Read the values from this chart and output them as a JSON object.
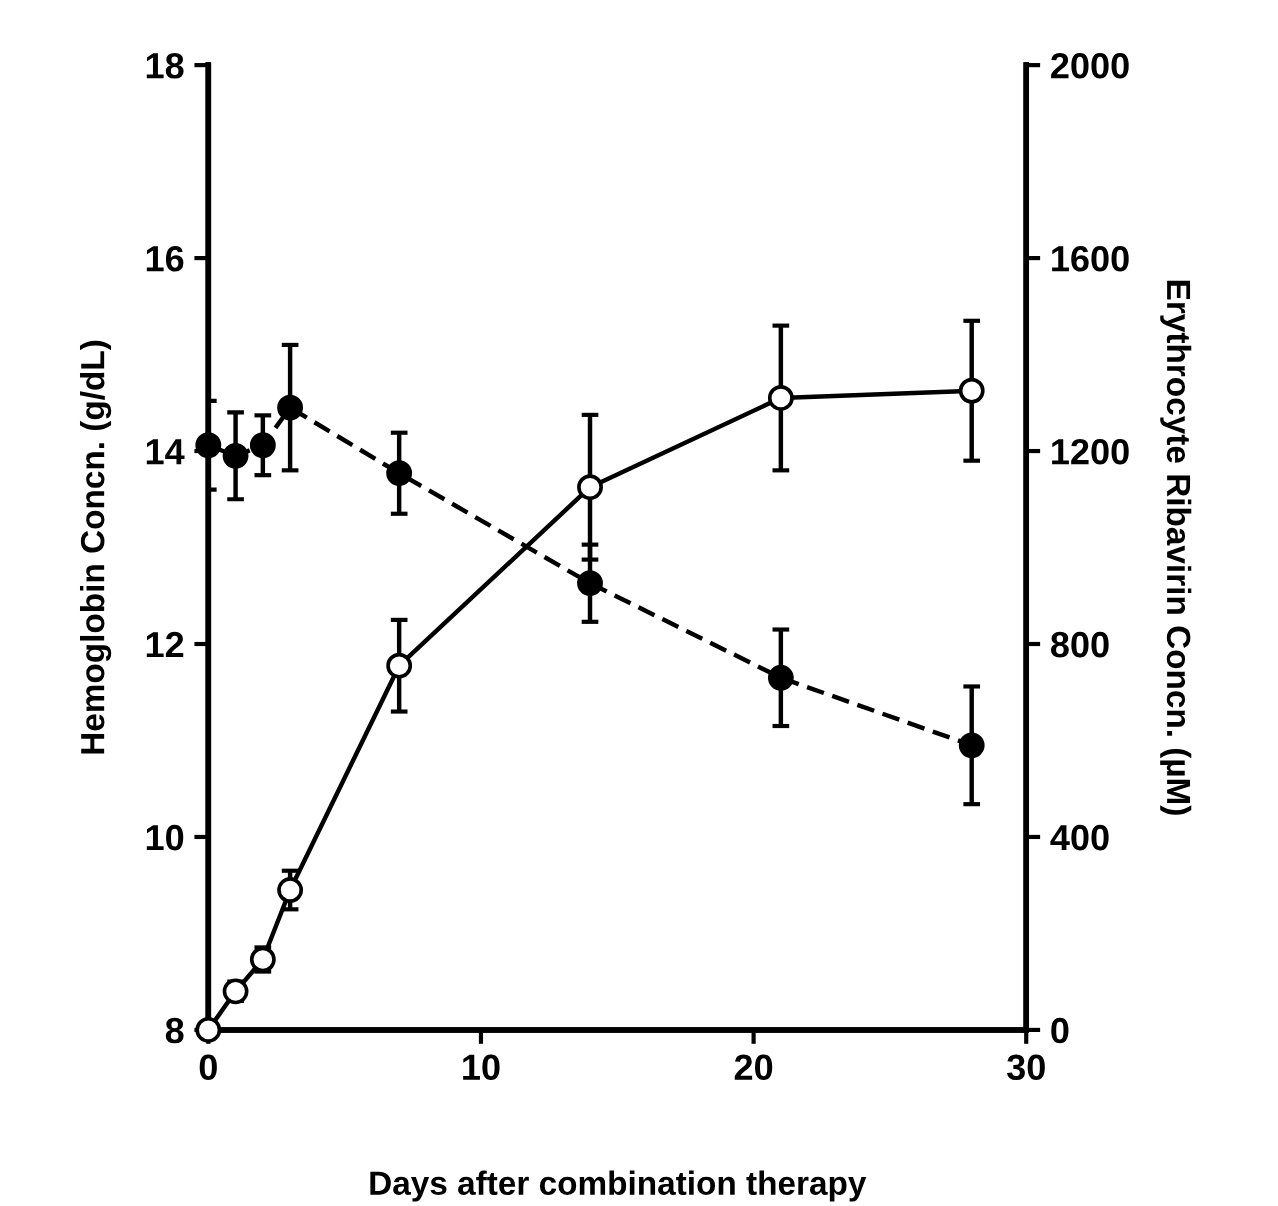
{
  "chart_data": {
    "type": "line",
    "xlabel": "Days after combination therapy",
    "ylabel": "Hemoglobin Concn. (g/dL)",
    "y2label": "Erythrocyte Ribavirin Concn. (µM)",
    "xlim": [
      0,
      30
    ],
    "xticks": [
      0,
      10,
      20,
      30
    ],
    "ylim": [
      8,
      18
    ],
    "yticks": [
      8,
      10,
      12,
      14,
      16,
      18
    ],
    "y2lim": [
      0,
      2000
    ],
    "y2ticks": [
      0,
      400,
      800,
      1200,
      1600,
      2000
    ],
    "marker": "circle",
    "grid": false,
    "legend": false,
    "series": [
      {
        "color": "#000000",
        "x": [
          0,
          1,
          2,
          3,
          7,
          14,
          21,
          28
        ],
        "values": [
          14.06,
          13.95,
          14.06,
          14.45,
          13.77,
          12.63,
          11.65,
          10.95
        ],
        "errors": [
          0.46,
          0.45,
          0.31,
          0.65,
          0.42,
          0.4,
          0.5,
          0.61
        ],
        "line_style": "dashed"
      },
      {
        "color": "#000000",
        "axis": "y2",
        "x": [
          0,
          1,
          2,
          3,
          7,
          14,
          21,
          28
        ],
        "values": [
          0,
          80,
          146,
          290,
          755,
          1125,
          1310,
          1325
        ],
        "errors": [
          null,
          20,
          25,
          40,
          95,
          150,
          150,
          145
        ],
        "line_style": "solid"
      }
    ]
  }
}
